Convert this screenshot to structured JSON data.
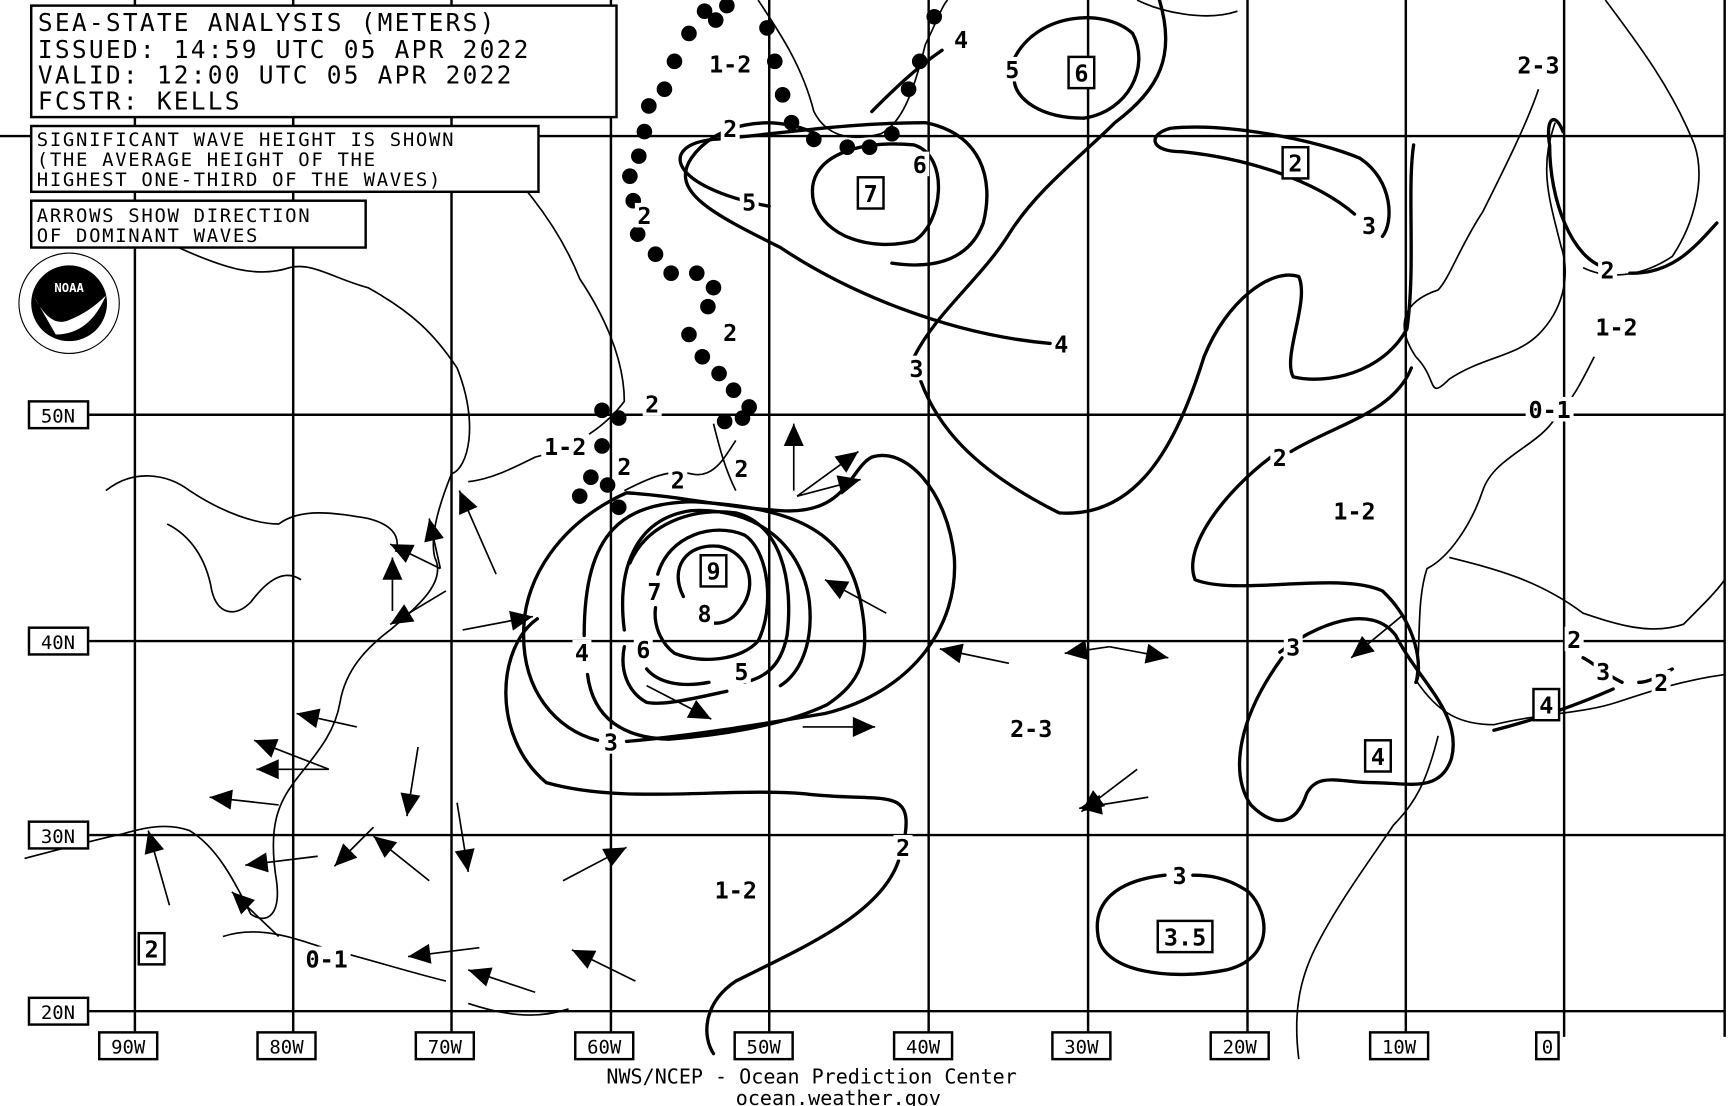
{
  "header": {
    "title": "SEA-STATE ANALYSIS (METERS)",
    "issued": "ISSUED:  14:59 UTC 05 APR 2022",
    "valid": "VALID:   12:00 UTC 05 APR 2022",
    "forecaster": "FCSTR:   KELLS"
  },
  "notes": {
    "wave_height": [
      "SIGNIFICANT WAVE HEIGHT IS SHOWN",
      "(THE AVERAGE HEIGHT OF THE",
      "HIGHEST ONE-THIRD OF THE WAVES)"
    ],
    "arrows": [
      "ARROWS SHOW DIRECTION",
      "OF DOMINANT WAVES"
    ]
  },
  "logo": {
    "text": "NOAA",
    "ring_text": "NATIONAL OCEANIC AND ATMOSPHERIC ADMINISTRATION U.S. DEPARTMENT OF COMMERCE"
  },
  "latitude_labels": [
    "50N",
    "40N",
    "30N",
    "20N"
  ],
  "longitude_labels": [
    "90W",
    "80W",
    "70W",
    "60W",
    "50W",
    "40W",
    "30W",
    "20W",
    "10W",
    "0"
  ],
  "contour_labels": [
    {
      "text": "1-2",
      "boxed": false
    },
    {
      "text": "2",
      "boxed": false
    },
    {
      "text": "6",
      "boxed": false
    },
    {
      "text": "7",
      "boxed": true
    },
    {
      "text": "5",
      "boxed": false
    },
    {
      "text": "2",
      "boxed": false
    },
    {
      "text": "4",
      "boxed": false
    },
    {
      "text": "5",
      "boxed": false
    },
    {
      "text": "6",
      "boxed": true
    },
    {
      "text": "2-3",
      "boxed": false
    },
    {
      "text": "2",
      "boxed": true
    },
    {
      "text": "3",
      "boxed": false
    },
    {
      "text": "2",
      "boxed": false
    },
    {
      "text": "4",
      "boxed": false
    },
    {
      "text": "3",
      "boxed": false
    },
    {
      "text": "2",
      "boxed": false
    },
    {
      "text": "1-2",
      "boxed": false
    },
    {
      "text": "2",
      "boxed": false
    },
    {
      "text": "0-1",
      "boxed": false
    },
    {
      "text": "1-2",
      "boxed": false
    },
    {
      "text": "2",
      "boxed": false
    },
    {
      "text": "2",
      "boxed": false
    },
    {
      "text": "2",
      "boxed": false
    },
    {
      "text": "2",
      "boxed": false
    },
    {
      "text": "1-2",
      "boxed": false
    },
    {
      "text": "9",
      "boxed": true
    },
    {
      "text": "7",
      "boxed": false
    },
    {
      "text": "8",
      "boxed": false
    },
    {
      "text": "4",
      "boxed": false
    },
    {
      "text": "6",
      "boxed": false
    },
    {
      "text": "3",
      "boxed": false
    },
    {
      "text": "5",
      "boxed": false
    },
    {
      "text": "2",
      "boxed": false
    },
    {
      "text": "3",
      "boxed": false
    },
    {
      "text": "2",
      "boxed": false
    },
    {
      "text": "4",
      "boxed": true
    },
    {
      "text": "3",
      "boxed": false
    },
    {
      "text": "2-3",
      "boxed": false
    },
    {
      "text": "4",
      "boxed": true
    },
    {
      "text": "2",
      "boxed": false
    },
    {
      "text": "3",
      "boxed": false
    },
    {
      "text": "1-2",
      "boxed": false
    },
    {
      "text": "3.5",
      "boxed": true
    },
    {
      "text": "2",
      "boxed": true
    },
    {
      "text": "0-1",
      "boxed": false
    }
  ],
  "footer": {
    "line1": "NWS/NCEP - Ocean Prediction Center",
    "line2": "ocean.weather.gov"
  }
}
